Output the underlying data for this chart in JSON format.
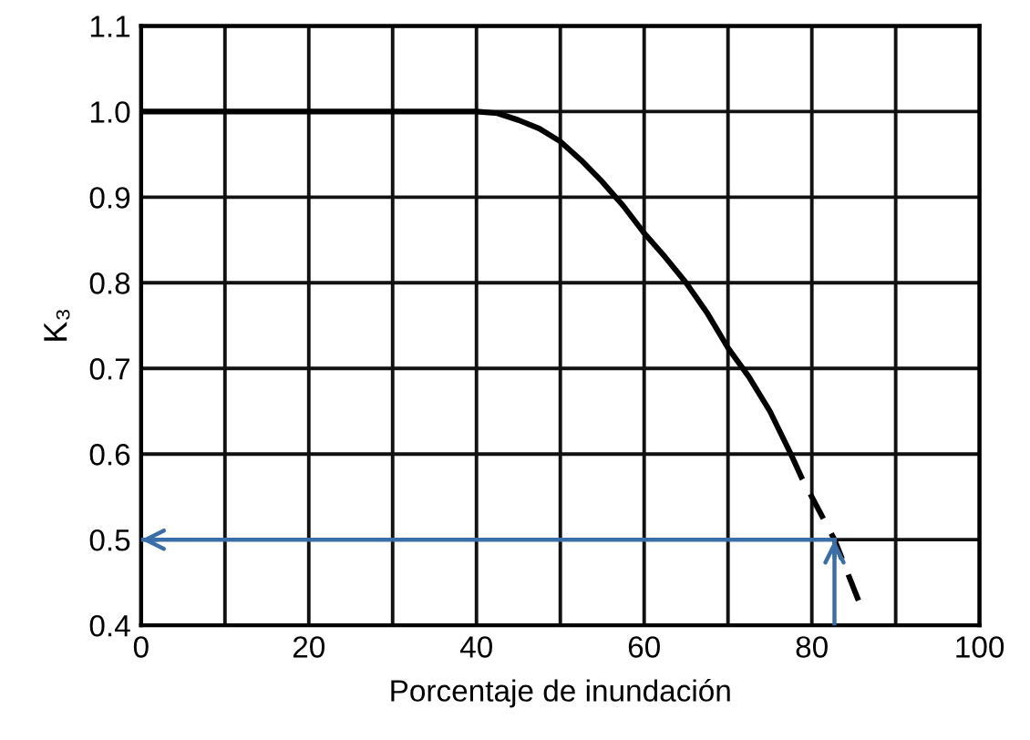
{
  "chart_data": {
    "type": "line",
    "xlabel": "Porcentaje de inundación",
    "ylabel": "K₃",
    "series": [
      {
        "color": "#000000",
        "line_style": "solid",
        "x": [
          0,
          40,
          42.5,
          45,
          47.5,
          50,
          52.5,
          55,
          57.5,
          60,
          62.5,
          65,
          67.5,
          70,
          72.5,
          75,
          77.5
        ],
        "values": [
          1.0,
          1.0,
          0.998,
          0.99,
          0.98,
          0.965,
          0.943,
          0.918,
          0.89,
          0.858,
          0.83,
          0.8,
          0.765,
          0.724,
          0.69,
          0.65,
          0.6
        ]
      },
      {
        "color": "#000000",
        "line_style": "dashed",
        "x": [
          77.5,
          78.8,
          82.7,
          85.6
        ],
        "values": [
          0.6,
          0.572,
          0.5,
          0.428
        ]
      }
    ],
    "xlim": [
      0,
      100
    ],
    "ylim": [
      0.4,
      1.1
    ],
    "xticks": [
      0,
      {
        "value": 10,
        "label": null
      },
      20,
      {
        "value": 30,
        "label": null
      },
      40,
      {
        "value": 50,
        "label": null
      },
      60,
      {
        "value": 70,
        "label": null
      },
      80,
      {
        "value": 90,
        "label": null
      },
      100
    ],
    "yticks": [
      0.4,
      0.5,
      0.6,
      0.7,
      0.8,
      0.9,
      {
        "value": 1,
        "label": "1.0"
      },
      1.1
    ],
    "ref_lines": [
      {
        "axis": "y",
        "value": 0.5,
        "color": "#3a6ea8"
      },
      {
        "axis": "x",
        "value": 82.7,
        "color": "#3a6ea8"
      }
    ],
    "grid": true,
    "marker": "none"
  }
}
